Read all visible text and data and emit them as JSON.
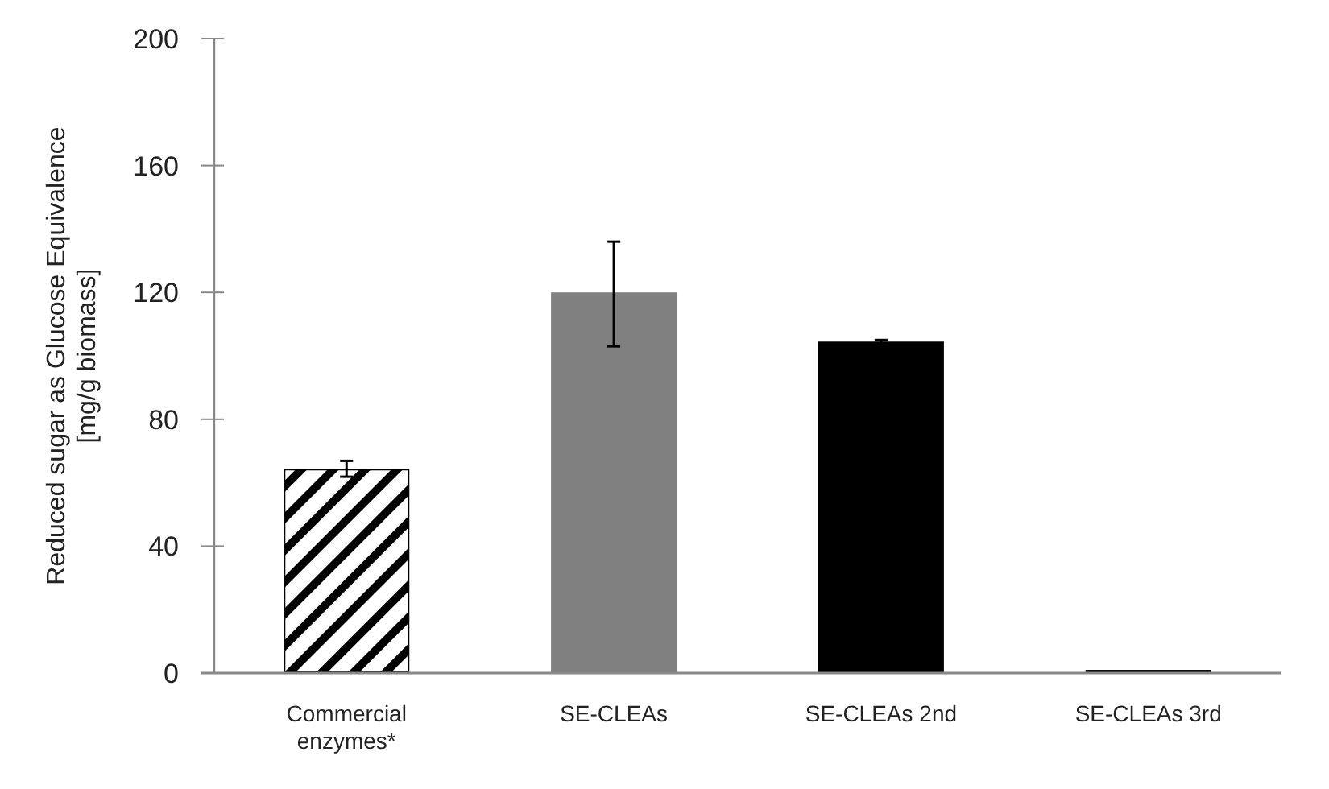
{
  "chart_data": {
    "type": "bar",
    "ylabel": "Reduced sugar as Glucose Equivalence\n[mg/g biomass]",
    "categories": [
      "Commercial\nenzymes*",
      "SE-CLEAs",
      "SE-CLEAs 2nd",
      "SE-CLEAs 3rd"
    ],
    "values": [
      64.4,
      120,
      104.5,
      1
    ],
    "errors": [
      2.5,
      [
        103,
        136
      ],
      0.5,
      null
    ],
    "colors": [
      "#ffffff",
      "#808080",
      "#000000",
      "#000000"
    ],
    "ylim": [
      0,
      200
    ],
    "yticks": [
      0,
      40,
      80,
      120,
      160,
      200
    ],
    "grid": false
  }
}
